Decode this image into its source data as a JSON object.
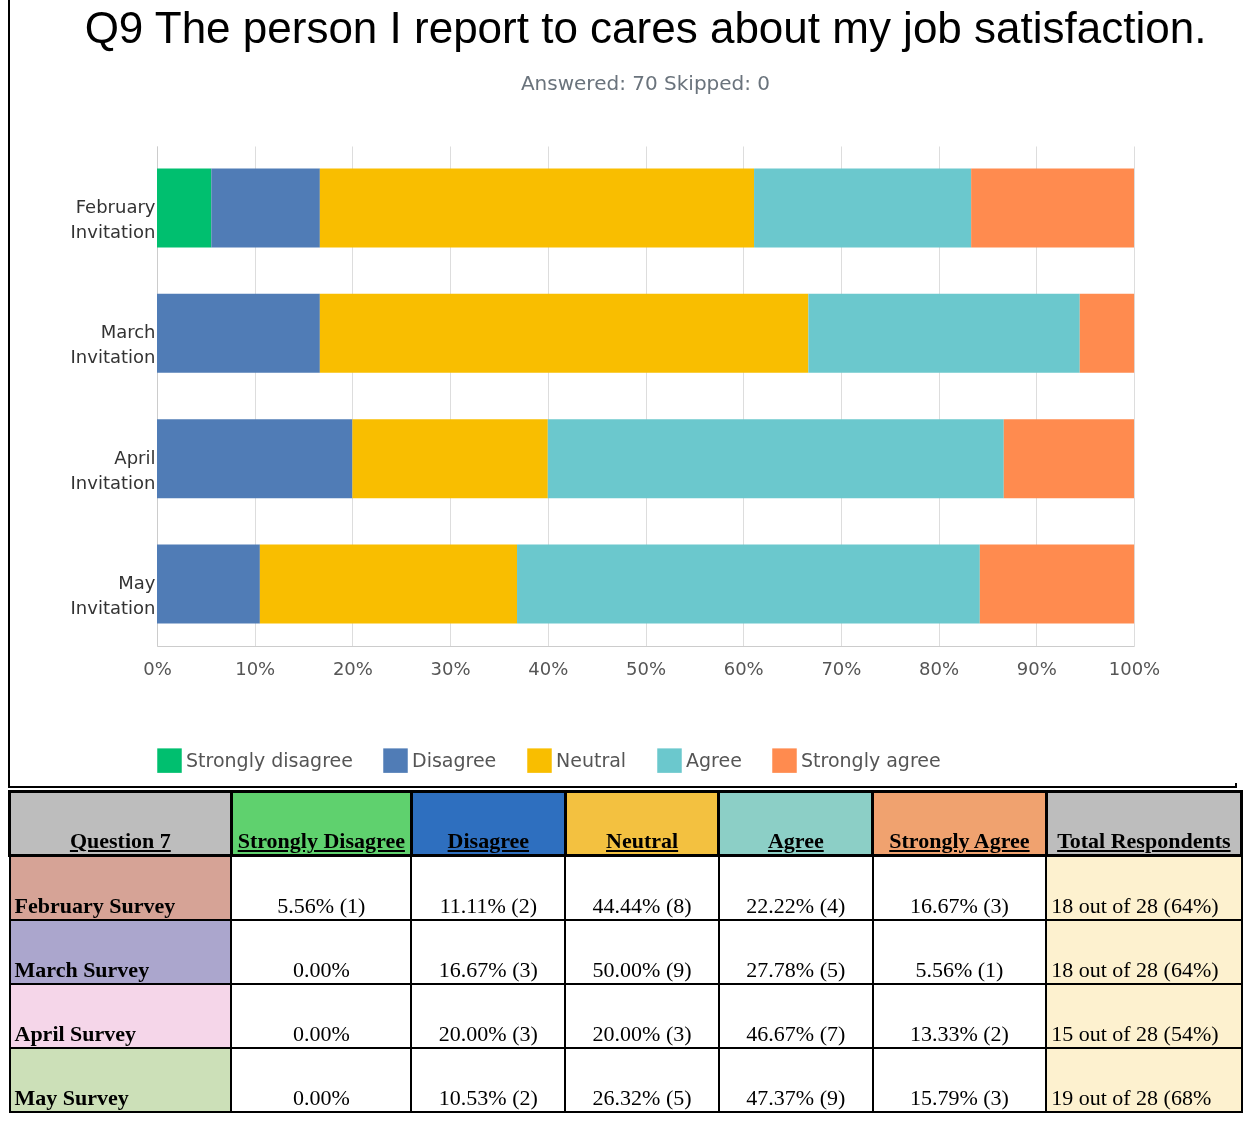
{
  "chart_data": {
    "type": "bar",
    "orientation": "horizontal",
    "stacked": true,
    "title": "Q9 The person I report to cares about my job satisfaction.",
    "subtitle": "Answered: 70    Skipped: 0",
    "categories": [
      "February Invitation",
      "March Invitation",
      "April Invitation",
      "May Invitation"
    ],
    "series": [
      {
        "name": "Strongly disagree",
        "color": "#00bf6f",
        "values": [
          5.56,
          0,
          0,
          0
        ]
      },
      {
        "name": "Disagree",
        "color": "#507cb6",
        "values": [
          11.11,
          16.67,
          20,
          10.53
        ]
      },
      {
        "name": "Neutral",
        "color": "#f9be00",
        "values": [
          44.44,
          50,
          20,
          26.32
        ]
      },
      {
        "name": "Agree",
        "color": "#6bc8cd",
        "values": [
          22.22,
          27.78,
          46.67,
          47.37
        ]
      },
      {
        "name": "Strongly agree",
        "color": "#ff8b4f",
        "values": [
          16.67,
          5.56,
          13.33,
          15.79
        ]
      }
    ],
    "xlim": [
      0,
      100
    ],
    "xticks": [
      {
        "value": 0,
        "label": "0%"
      },
      {
        "value": 10,
        "label": "10%"
      },
      {
        "value": 20,
        "label": "20%"
      },
      {
        "value": 30,
        "label": "30%"
      },
      {
        "value": 40,
        "label": "40%"
      },
      {
        "value": 50,
        "label": "50%"
      },
      {
        "value": 60,
        "label": "60%"
      },
      {
        "value": 70,
        "label": "70%"
      },
      {
        "value": 80,
        "label": "80%"
      },
      {
        "value": 90,
        "label": "90%"
      },
      {
        "value": 100,
        "label": "100%"
      }
    ],
    "grid": "x",
    "legend": "bottom",
    "annotations": [
      "Question 7",
      "Strongly Disagree",
      "Disagree",
      "Neutral",
      "Agree",
      "Strongly Agree",
      "Total Respondents",
      "February Survey",
      "5.56% (1)",
      "11.11% (2)",
      "44.44% (8)",
      "22.22% (4)",
      "16.67% (3)",
      "18 out of 28 (64%)",
      "March Survey",
      "0.00%",
      "16.67% (3)",
      "50.00% (9)",
      "27.78% (5)",
      "5.56% (1)",
      "18 out of 28 (64%)",
      "April Survey",
      "0.00%",
      "20.00% (3)",
      "20.00% (3)",
      "46.67% (7)",
      "13.33% (2)",
      "15 out of 28 (54%)",
      "May Survey",
      "0.00%",
      "10.53% (2)",
      "26.32% (5)",
      "47.37% (9)",
      "15.79% (3)",
      "19 out of 28 (68%"
    ]
  }
}
